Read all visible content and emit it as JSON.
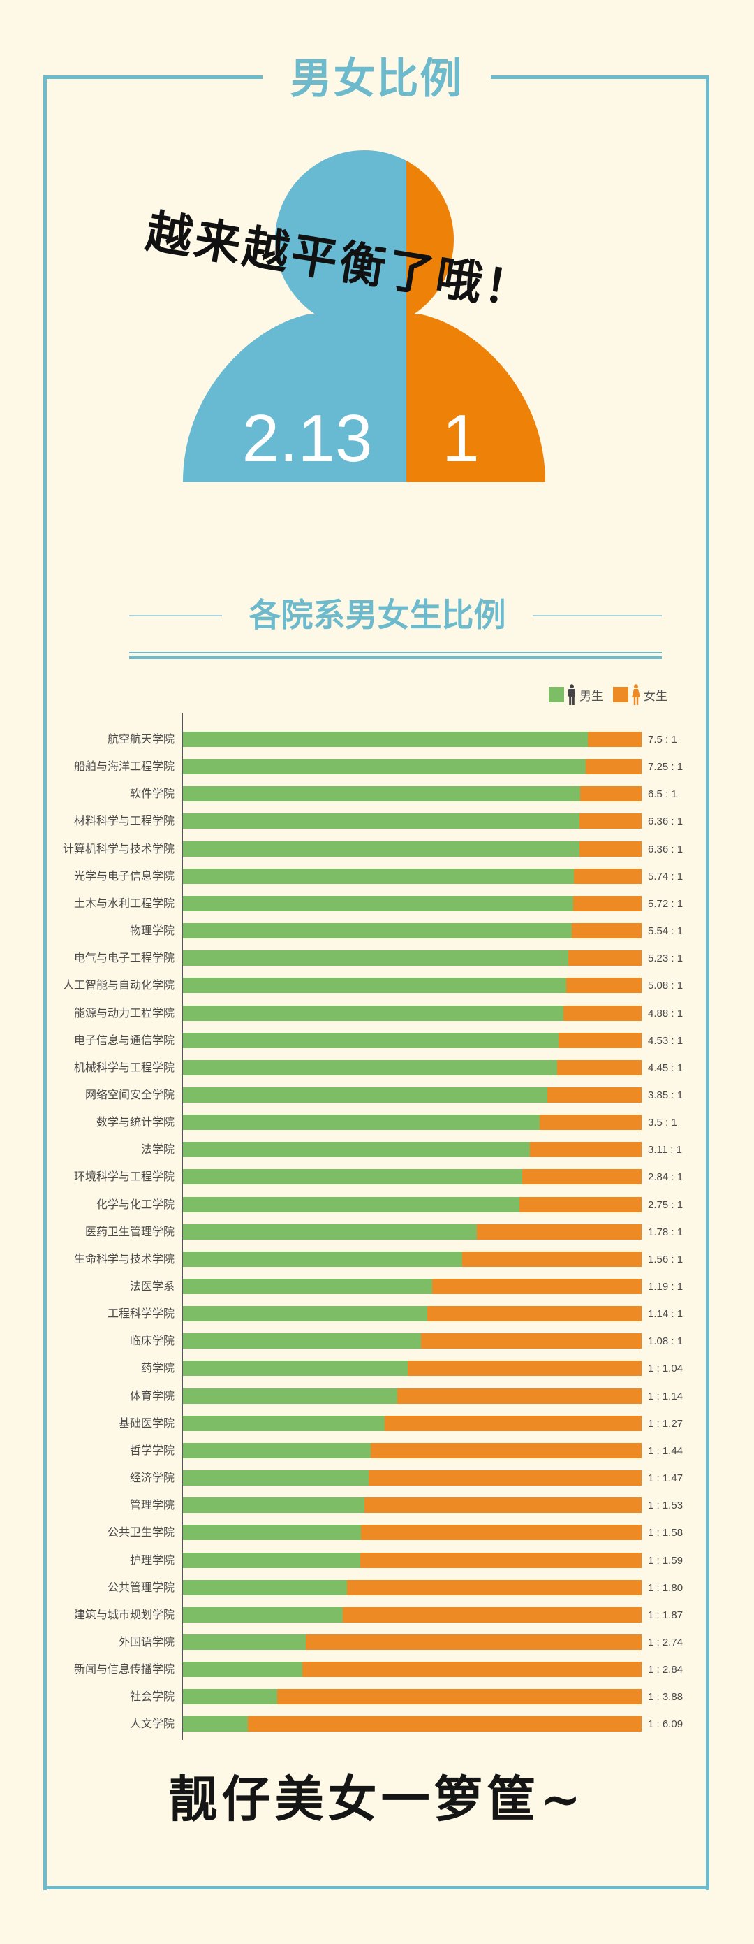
{
  "header": {
    "title": "男女比例"
  },
  "overview": {
    "slogan": "越来越平衡了哦！",
    "male_ratio": "2.13",
    "female_ratio": "1",
    "male_color": "#67BAD2",
    "female_color": "#EE8208"
  },
  "section": {
    "title": "各院系男女生比例"
  },
  "legend": {
    "male_label": "男生",
    "female_label": "女生",
    "male_color": "#7DBD66",
    "female_color": "#EE8A24"
  },
  "footer": {
    "slogan": "靓仔美女一箩筐~"
  },
  "chart_data": {
    "type": "bar",
    "orientation": "horizontal",
    "stacked": true,
    "normalized": true,
    "title": "各院系男女生比例",
    "xlabel": "",
    "ylabel": "",
    "legend": [
      "男生",
      "女生"
    ],
    "legend_position": "top-right",
    "grid": false,
    "categories": [
      "航空航天学院",
      "船舶与海洋工程学院",
      "软件学院",
      "材料科学与工程学院",
      "计算机科学与技术学院",
      "光学与电子信息学院",
      "土木与水利工程学院",
      "物理学院",
      "电气与电子工程学院",
      "人工智能与自动化学院",
      "能源与动力工程学院",
      "电子信息与通信学院",
      "机械科学与工程学院",
      "网络空间安全学院",
      "数学与统计学院",
      "法学院",
      "环境科学与工程学院",
      "化学与化工学院",
      "医药卫生管理学院",
      "生命科学与技术学院",
      "法医学系",
      "工程科学学院",
      "临床学院",
      "药学院",
      "体育学院",
      "基础医学院",
      "哲学学院",
      "经济学院",
      "管理学院",
      "公共卫生学院",
      "护理学院",
      "公共管理学院",
      "建筑与城市规划学院",
      "外国语学院",
      "新闻与信息传播学院",
      "社会学院",
      "人文学院"
    ],
    "series": [
      {
        "name": "男生",
        "values": [
          7.5,
          7.25,
          6.5,
          6.36,
          6.36,
          5.74,
          5.72,
          5.54,
          5.23,
          5.08,
          4.88,
          4.53,
          4.45,
          3.85,
          3.5,
          3.11,
          2.84,
          2.75,
          1.78,
          1.56,
          1.19,
          1.14,
          1.08,
          1,
          1,
          1,
          1,
          1,
          1,
          1,
          1,
          1,
          1,
          1,
          1,
          1,
          1
        ]
      },
      {
        "name": "女生",
        "values": [
          1,
          1,
          1,
          1,
          1,
          1,
          1,
          1,
          1,
          1,
          1,
          1,
          1,
          1,
          1,
          1,
          1,
          1,
          1,
          1,
          1,
          1,
          1,
          1.04,
          1.14,
          1.27,
          1.44,
          1.47,
          1.53,
          1.58,
          1.59,
          1.8,
          1.87,
          2.74,
          2.84,
          3.88,
          6.09
        ]
      }
    ],
    "rows": [
      {
        "label": "航空航天学院",
        "ratio": "7.5 : 1",
        "male": 7.5,
        "female": 1
      },
      {
        "label": "船舶与海洋工程学院",
        "ratio": "7.25 : 1",
        "male": 7.25,
        "female": 1
      },
      {
        "label": "软件学院",
        "ratio": "6.5 : 1",
        "male": 6.5,
        "female": 1
      },
      {
        "label": "材料科学与工程学院",
        "ratio": "6.36 : 1",
        "male": 6.36,
        "female": 1
      },
      {
        "label": "计算机科学与技术学院",
        "ratio": "6.36 : 1",
        "male": 6.36,
        "female": 1
      },
      {
        "label": "光学与电子信息学院",
        "ratio": "5.74 : 1",
        "male": 5.74,
        "female": 1
      },
      {
        "label": "土木与水利工程学院",
        "ratio": "5.72 : 1",
        "male": 5.72,
        "female": 1
      },
      {
        "label": "物理学院",
        "ratio": "5.54 : 1",
        "male": 5.54,
        "female": 1
      },
      {
        "label": "电气与电子工程学院",
        "ratio": "5.23 : 1",
        "male": 5.23,
        "female": 1
      },
      {
        "label": "人工智能与自动化学院",
        "ratio": "5.08 : 1",
        "male": 5.08,
        "female": 1
      },
      {
        "label": "能源与动力工程学院",
        "ratio": "4.88 : 1",
        "male": 4.88,
        "female": 1
      },
      {
        "label": "电子信息与通信学院",
        "ratio": "4.53 : 1",
        "male": 4.53,
        "female": 1
      },
      {
        "label": "机械科学与工程学院",
        "ratio": "4.45 : 1",
        "male": 4.45,
        "female": 1
      },
      {
        "label": "网络空间安全学院",
        "ratio": "3.85 : 1",
        "male": 3.85,
        "female": 1
      },
      {
        "label": "数学与统计学院",
        "ratio": "3.5 : 1",
        "male": 3.5,
        "female": 1
      },
      {
        "label": "法学院",
        "ratio": "3.11 : 1",
        "male": 3.11,
        "female": 1
      },
      {
        "label": "环境科学与工程学院",
        "ratio": "2.84 : 1",
        "male": 2.84,
        "female": 1
      },
      {
        "label": "化学与化工学院",
        "ratio": "2.75 : 1",
        "male": 2.75,
        "female": 1
      },
      {
        "label": "医药卫生管理学院",
        "ratio": "1.78 : 1",
        "male": 1.78,
        "female": 1
      },
      {
        "label": "生命科学与技术学院",
        "ratio": "1.56 : 1",
        "male": 1.56,
        "female": 1
      },
      {
        "label": "法医学系",
        "ratio": "1.19 : 1",
        "male": 1.19,
        "female": 1
      },
      {
        "label": "工程科学学院",
        "ratio": "1.14 : 1",
        "male": 1.14,
        "female": 1
      },
      {
        "label": "临床学院",
        "ratio": "1.08 : 1",
        "male": 1.08,
        "female": 1
      },
      {
        "label": "药学院",
        "ratio": "1 : 1.04",
        "male": 1,
        "female": 1.04
      },
      {
        "label": "体育学院",
        "ratio": "1 : 1.14",
        "male": 1,
        "female": 1.14
      },
      {
        "label": "基础医学院",
        "ratio": "1 : 1.27",
        "male": 1,
        "female": 1.27
      },
      {
        "label": "哲学学院",
        "ratio": "1 : 1.44",
        "male": 1,
        "female": 1.44
      },
      {
        "label": "经济学院",
        "ratio": "1 : 1.47",
        "male": 1,
        "female": 1.47
      },
      {
        "label": "管理学院",
        "ratio": "1 : 1.53",
        "male": 1,
        "female": 1.53
      },
      {
        "label": "公共卫生学院",
        "ratio": "1 : 1.58",
        "male": 1,
        "female": 1.58
      },
      {
        "label": "护理学院",
        "ratio": "1 : 1.59",
        "male": 1,
        "female": 1.59
      },
      {
        "label": "公共管理学院",
        "ratio": "1 : 1.80",
        "male": 1,
        "female": 1.8
      },
      {
        "label": "建筑与城市规划学院",
        "ratio": "1 : 1.87",
        "male": 1,
        "female": 1.87
      },
      {
        "label": "外国语学院",
        "ratio": "1 : 2.74",
        "male": 1,
        "female": 2.74
      },
      {
        "label": "新闻与信息传播学院",
        "ratio": "1 : 2.84",
        "male": 1,
        "female": 2.84
      },
      {
        "label": "社会学院",
        "ratio": "1 : 3.88",
        "male": 1,
        "female": 3.88
      },
      {
        "label": "人文学院",
        "ratio": "1 : 6.09",
        "male": 1,
        "female": 6.09
      }
    ],
    "overall": {
      "male": 2.13,
      "female": 1,
      "label": "2.13 : 1"
    }
  }
}
